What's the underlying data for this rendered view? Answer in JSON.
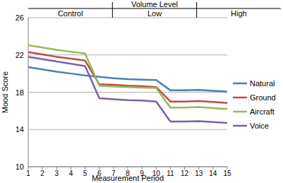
{
  "chart_data": {
    "type": "line",
    "title": "Volume Level",
    "annotations": [
      "Control",
      "Low",
      "High"
    ],
    "x_label": "Measurement Period",
    "y_label": "Mood Score",
    "x": [
      1,
      2,
      3,
      4,
      5,
      6,
      7,
      8,
      9,
      10,
      11,
      12,
      13,
      14,
      15
    ],
    "series": [
      {
        "name": "Natural",
        "color": "#4a7ebb",
        "values": [
          20.7,
          20.45,
          20.2,
          20.0,
          19.8,
          19.65,
          19.5,
          19.4,
          19.35,
          19.3,
          18.2,
          18.2,
          18.25,
          18.15,
          18.05
        ]
      },
      {
        "name": "Ground",
        "color": "#be4b48",
        "values": [
          22.3,
          22.05,
          21.8,
          21.6,
          21.4,
          18.85,
          18.8,
          18.7,
          18.65,
          18.55,
          17.0,
          17.0,
          17.05,
          16.95,
          16.85
        ]
      },
      {
        "name": "Aircraft",
        "color": "#98b954",
        "values": [
          23.05,
          22.8,
          22.55,
          22.35,
          22.15,
          18.7,
          18.6,
          18.55,
          18.5,
          18.45,
          16.35,
          16.35,
          16.4,
          16.3,
          16.2
        ]
      },
      {
        "name": "Voice",
        "color": "#7d60a0",
        "values": [
          21.8,
          21.55,
          21.3,
          21.05,
          20.8,
          17.35,
          17.25,
          17.15,
          17.1,
          17.0,
          14.85,
          14.85,
          14.9,
          14.8,
          14.7
        ]
      }
    ],
    "xlim": [
      1,
      15
    ],
    "xticks": [
      1,
      2,
      3,
      4,
      5,
      6,
      7,
      8,
      9,
      10,
      11,
      12,
      13,
      14,
      15
    ],
    "ylim": [
      10,
      26
    ],
    "yticks": [
      10,
      14,
      18,
      22,
      26
    ],
    "grid": true,
    "legend": "right"
  }
}
